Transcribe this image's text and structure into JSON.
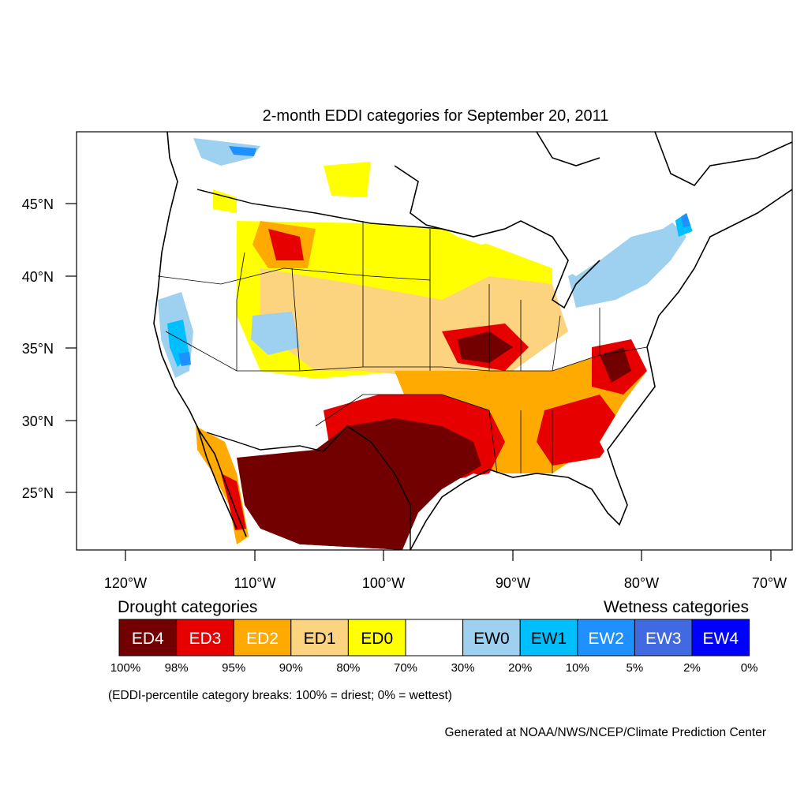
{
  "title": "2-month EDDI categories for September 20, 2011",
  "y_ticks": [
    "45°N",
    "40°N",
    "35°N",
    "30°N",
    "25°N"
  ],
  "x_ticks": [
    "120°W",
    "110°W",
    "100°W",
    "90°W",
    "80°W",
    "70°W"
  ],
  "legend": {
    "drought_title": "Drought categories",
    "wetness_title": "Wetness categories",
    "boxes": [
      {
        "label": "ED4",
        "color": "#730000",
        "text_color": "#ffffff"
      },
      {
        "label": "ED3",
        "color": "#e60000",
        "text_color": "#ffffff"
      },
      {
        "label": "ED2",
        "color": "#ffaa00",
        "text_color": "#ffffff"
      },
      {
        "label": "ED1",
        "color": "#fcd37f",
        "text_color": "#000000"
      },
      {
        "label": "ED0",
        "color": "#ffff00",
        "text_color": "#000000"
      },
      {
        "label": "",
        "color": "#ffffff",
        "text_color": "#000000"
      },
      {
        "label": "EW0",
        "color": "#9ed0f0",
        "text_color": "#000000"
      },
      {
        "label": "EW1",
        "color": "#00bfff",
        "text_color": "#000000"
      },
      {
        "label": "EW2",
        "color": "#1e90ff",
        "text_color": "#ffffff"
      },
      {
        "label": "EW3",
        "color": "#4169e1",
        "text_color": "#ffffff"
      },
      {
        "label": "EW4",
        "color": "#0000ff",
        "text_color": "#ffffff"
      }
    ],
    "breaks": [
      "100%",
      "98%",
      "95%",
      "90%",
      "80%",
      "70%",
      "30%",
      "20%",
      "10%",
      "5%",
      "2%",
      "0%"
    ]
  },
  "note": "(EDDI-percentile category breaks: 100% = driest; 0% = wettest)",
  "credit": "Generated at NOAA/NWS/NCEP/Climate Prediction Center"
}
